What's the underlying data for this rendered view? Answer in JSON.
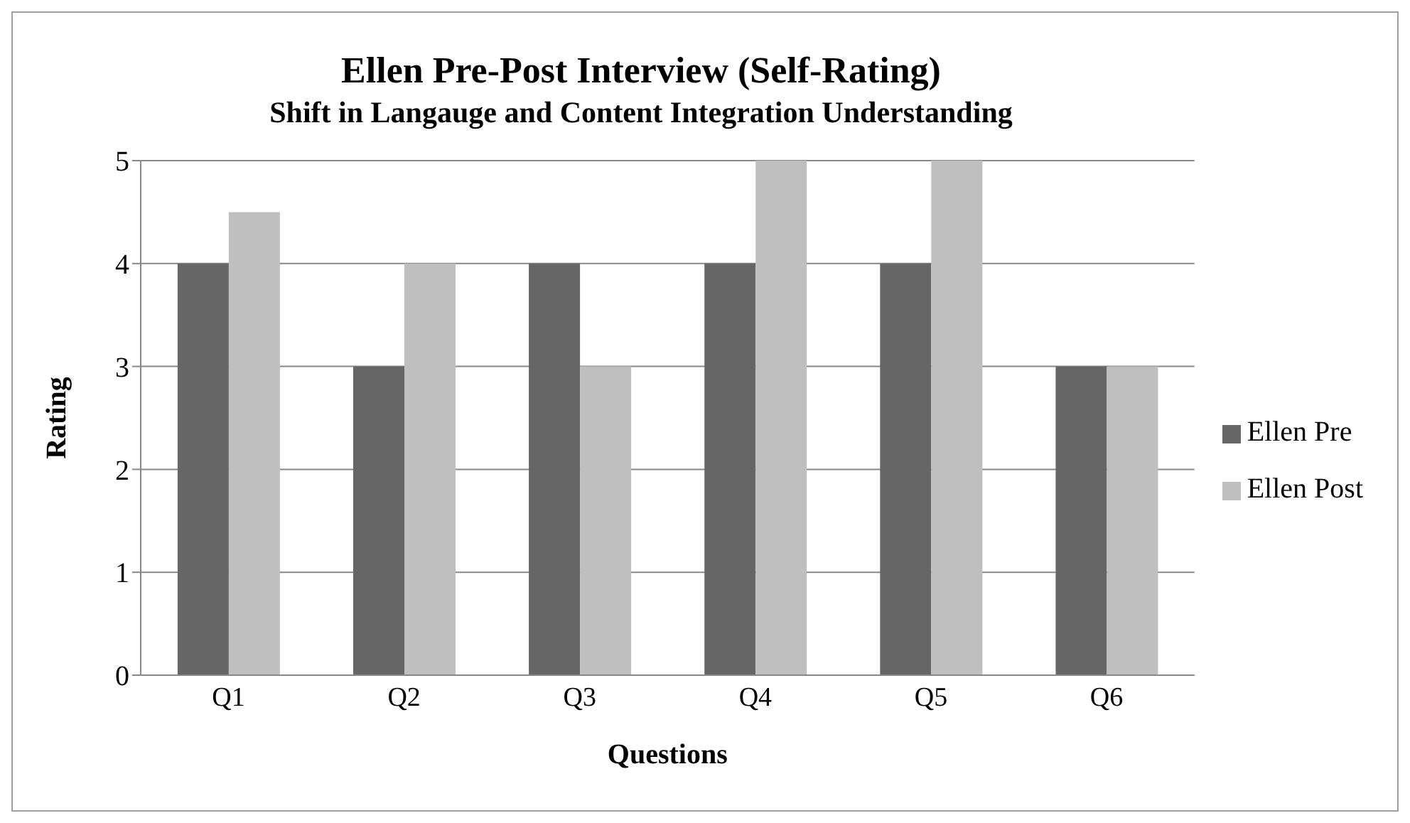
{
  "chart_data": {
    "type": "bar",
    "title": "Ellen Pre-Post Interview (Self-Rating)",
    "subtitle": "Shift in Langauge and Content Integration Understanding",
    "xlabel": "Questions",
    "ylabel": "Rating",
    "categories": [
      "Q1",
      "Q2",
      "Q3",
      "Q4",
      "Q5",
      "Q6"
    ],
    "series": [
      {
        "name": "Ellen Pre",
        "color": "#666666",
        "values": [
          4,
          3,
          4,
          4,
          4,
          3
        ]
      },
      {
        "name": "Ellen Post",
        "color": "#bfbfbf",
        "values": [
          4.5,
          4,
          3,
          5,
          5,
          3
        ]
      }
    ],
    "ylim": [
      0,
      5
    ],
    "yticks": [
      0,
      1,
      2,
      3,
      4,
      5
    ],
    "grid": "y",
    "legend": "right"
  }
}
